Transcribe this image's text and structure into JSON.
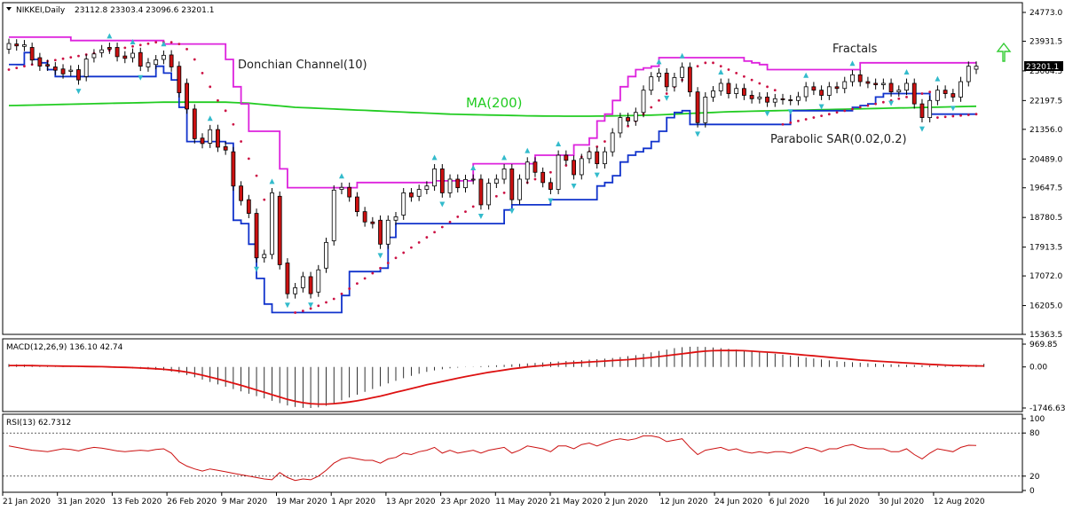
{
  "header": {
    "title": "NIKKEI,Daily",
    "ohlc": "23112.8 23303.4 23096.6 23201.1",
    "macd": "MACD(12,26,9) 136.10 42.74",
    "rsi": "RSI(13) 62.7312"
  },
  "annotations": {
    "donchian": "Donchian Channel(10)",
    "ma": "MA(200)",
    "fractals": "Fractals",
    "sar": "Parabolic SAR(0.02,0.2)"
  },
  "last_price": "23201.1",
  "colors": {
    "bull": "#ffffff",
    "bear": "#cc1111",
    "wick": "#000000",
    "donchian_upper": "#dd22dd",
    "donchian_lower": "#1133cc",
    "ma": "#22cc22",
    "sar": "#cc1144",
    "fractal": "#33bbcc",
    "macd_signal": "#dd1111",
    "macd_hist": "#000000",
    "rsi": "#cc1111",
    "arrow": "#33cc33"
  },
  "chart_data": [
    {
      "type": "candlestick",
      "title": "NIKKEI,Daily",
      "ylim": [
        15363.5,
        24773.0
      ],
      "y_ticks": [
        "24773.0",
        "23931.5",
        "23064.5",
        "22197.5",
        "21356.0",
        "20489.0",
        "19647.5",
        "18780.5",
        "17913.5",
        "17072.0",
        "16205.0",
        "15363.5"
      ],
      "x_labels": [
        "21 Jan 2020",
        "31 Jan 2020",
        "13 Feb 2020",
        "26 Feb 2020",
        "9 Mar 2020",
        "19 Mar 2020",
        "1 Apr 2020",
        "13 Apr 2020",
        "23 Apr 2020",
        "11 May 2020",
        "21 May 2020",
        "2 Jun 2020",
        "12 Jun 2020",
        "24 Jun 2020",
        "6 Jul 2020",
        "16 Jul 2020",
        "30 Jul 2020",
        "12 Aug 2020"
      ],
      "close": [
        23864,
        23795,
        23827,
        23380,
        23205,
        23204,
        23084,
        22977,
        23085,
        22800,
        23410,
        23560,
        23680,
        23700,
        23480,
        23430,
        23580,
        23200,
        23300,
        23388,
        23520,
        23180,
        22426,
        21950,
        21082,
        20940,
        21345,
        20834,
        20750,
        19699,
        19272,
        18900,
        17600,
        17700,
        19500,
        17400,
        16550,
        16727,
        17050,
        16553,
        17250,
        18050,
        19580,
        19660,
        19380,
        18950,
        18650,
        18600,
        18000,
        18700,
        18800,
        19500,
        19380,
        19600,
        19700,
        20200,
        19500,
        19900,
        19650,
        19890,
        19900,
        19150,
        19780,
        19900,
        20200,
        19300,
        19900,
        20400,
        20100,
        19800,
        19600,
        20600,
        20450,
        20030,
        20500,
        20700,
        20350,
        20700,
        21250,
        21700,
        21600,
        21850,
        22500,
        22890,
        23000,
        22600,
        22870,
        23170,
        22450,
        21550,
        22300,
        22480,
        22700,
        22400,
        22550,
        22350,
        22250,
        22300,
        22150,
        22250,
        22220,
        22200,
        22310,
        22600,
        22500,
        22350,
        22600,
        22550,
        22750,
        22950,
        22750,
        22700,
        22660,
        22700,
        22450,
        22500,
        22700,
        22100,
        21700,
        22200,
        22500,
        22400,
        22300,
        22750,
        23200,
        23201.1
      ],
      "open": [
        23700,
        23850,
        23780,
        23750,
        23450,
        23250,
        23180,
        23120,
        23050,
        23100,
        22900,
        23450,
        23600,
        23750,
        23750,
        23500,
        23450,
        23600,
        23180,
        23250,
        23400,
        23530,
        23200,
        22700,
        21950,
        21100,
        20950,
        21350,
        20850,
        20700,
        19700,
        19300,
        18900,
        17600,
        17700,
        19400,
        17450,
        16550,
        16727,
        17050,
        16600,
        17300,
        18100,
        19600,
        19660,
        19380,
        18950,
        18650,
        18700,
        18000,
        18700,
        18850,
        19500,
        19400,
        19600,
        19700,
        20200,
        19500,
        19900,
        19650,
        19890,
        19900,
        19150,
        19780,
        19900,
        20200,
        19300,
        19900,
        20400,
        20100,
        19800,
        19600,
        20600,
        20450,
        20030,
        20500,
        20700,
        20350,
        20700,
        21250,
        21700,
        21600,
        21850,
        22500,
        22890,
        23000,
        22600,
        22870,
        23170,
        22450,
        21550,
        22300,
        22480,
        22700,
        22400,
        22550,
        22350,
        22250,
        22300,
        22150,
        22250,
        22220,
        22200,
        22310,
        22600,
        22500,
        22350,
        22600,
        22550,
        22750,
        22950,
        22750,
        22700,
        22660,
        22700,
        22450,
        22500,
        22700,
        22100,
        21700,
        22200,
        22500,
        22400,
        22300,
        22750,
        23112.8
      ],
      "donchian_upper": [
        24050,
        24050,
        24050,
        24050,
        24050,
        24050,
        24050,
        24050,
        23950,
        23950,
        23950,
        23950,
        23950,
        23950,
        23950,
        23950,
        23950,
        23950,
        23950,
        23950,
        23850,
        23850,
        23850,
        23850,
        23850,
        23850,
        23850,
        23850,
        23400,
        22600,
        22100,
        21300,
        21300,
        21300,
        21300,
        20200,
        19650,
        19650,
        19650,
        19650,
        19650,
        19650,
        19650,
        19650,
        19650,
        19800,
        19800,
        19800,
        19800,
        19800,
        19800,
        19800,
        19800,
        19800,
        19800,
        19850,
        19850,
        19850,
        19850,
        19850,
        20350,
        20350,
        20350,
        20350,
        20350,
        20350,
        20350,
        20350,
        20600,
        20600,
        20600,
        20600,
        20600,
        20900,
        20900,
        21100,
        21600,
        21800,
        22200,
        22600,
        22900,
        23100,
        23150,
        23200,
        23450,
        23450,
        23450,
        23450,
        23450,
        23450,
        23450,
        23450,
        23450,
        23450,
        23450,
        23350,
        23300,
        23250,
        23100,
        23100,
        23100,
        23100,
        23100,
        23100,
        23100,
        23100,
        23100,
        23100,
        23100,
        23100,
        23300,
        23300,
        23300,
        23300,
        23300,
        23300,
        23300,
        23300,
        23300,
        23300,
        23300,
        23300,
        23300,
        23300,
        23300,
        23300
      ],
      "donchian_lower": [
        23250,
        23250,
        23600,
        23400,
        23300,
        23100,
        22900,
        22900,
        22900,
        22900,
        22900,
        22900,
        22900,
        22900,
        22900,
        22900,
        22900,
        22900,
        22900,
        23200,
        23000,
        22800,
        22000,
        21000,
        21000,
        21000,
        21000,
        21000,
        20950,
        18700,
        18600,
        18000,
        17000,
        16250,
        16000,
        16000,
        16000,
        16000,
        16000,
        16000,
        16000,
        16000,
        16000,
        16500,
        17200,
        17200,
        17200,
        17200,
        17300,
        18200,
        18600,
        18600,
        18600,
        18600,
        18600,
        18600,
        18600,
        18600,
        18600,
        18600,
        18600,
        18600,
        18600,
        18600,
        19000,
        19150,
        19150,
        19150,
        19150,
        19150,
        19300,
        19300,
        19300,
        19300,
        19300,
        19300,
        19700,
        19800,
        20000,
        20400,
        20600,
        20700,
        20800,
        21000,
        21300,
        21700,
        21850,
        21900,
        21500,
        21500,
        21500,
        21500,
        21500,
        21500,
        21500,
        21500,
        21500,
        21500,
        21500,
        21500,
        21500,
        21900,
        21900,
        21900,
        21900,
        21900,
        21900,
        21900,
        21900,
        22000,
        22050,
        22100,
        22300,
        22400,
        22400,
        22400,
        22400,
        22400,
        22400,
        21800,
        21800,
        21800,
        21800,
        21800,
        21800,
        21800
      ],
      "ma200": [
        22050,
        22055,
        22060,
        22065,
        22070,
        22075,
        22080,
        22085,
        22090,
        22095,
        22100,
        22105,
        22110,
        22115,
        22120,
        22125,
        22130,
        22135,
        22140,
        22145,
        22150,
        22150,
        22150,
        22150,
        22150,
        22150,
        22150,
        22150,
        22150,
        22140,
        22130,
        22120,
        22100,
        22080,
        22060,
        22040,
        22020,
        22000,
        21990,
        21980,
        21970,
        21960,
        21950,
        21940,
        21930,
        21920,
        21910,
        21900,
        21890,
        21880,
        21870,
        21860,
        21850,
        21840,
        21830,
        21820,
        21810,
        21800,
        21795,
        21790,
        21785,
        21780,
        21775,
        21770,
        21765,
        21760,
        21755,
        21750,
        21748,
        21746,
        21744,
        21742,
        21740,
        21740,
        21740,
        21740,
        21742,
        21745,
        21748,
        21752,
        21756,
        21760,
        21766,
        21772,
        21780,
        21790,
        21800,
        21810,
        21820,
        21830,
        21840,
        21850,
        21860,
        21870,
        21875,
        21880,
        21885,
        21890,
        21895,
        21900,
        21905,
        21910,
        21915,
        21920,
        21925,
        21930,
        21935,
        21940,
        21945,
        21950,
        21955,
        21960,
        21965,
        21970,
        21975,
        21980,
        21985,
        21990,
        21995,
        22000,
        22005,
        22010,
        22015,
        22020,
        22025,
        22030
      ],
      "sar": [
        23100,
        23150,
        23200,
        23250,
        23300,
        23350,
        23380,
        23420,
        23460,
        23500,
        23540,
        23580,
        23620,
        23660,
        23700,
        23740,
        23780,
        23820,
        23860,
        23900,
        23900,
        23900,
        23850,
        23700,
        23400,
        23000,
        22600,
        22200,
        21900,
        21500,
        21000,
        20500,
        20000,
        19300,
        18500,
        17500,
        16700,
        16000,
        16050,
        16120,
        16200,
        16300,
        16400,
        16550,
        16700,
        16850,
        17000,
        17150,
        17300,
        17450,
        17600,
        17750,
        17900,
        18050,
        18200,
        18350,
        18500,
        18650,
        18800,
        18950,
        19100,
        19200,
        19300,
        19400,
        19500,
        19600,
        19700,
        19800,
        19900,
        20000,
        20100,
        20200,
        20300,
        20400,
        20550,
        20700,
        20850,
        21000,
        21150,
        21300,
        21450,
        21600,
        21800,
        22000,
        22200,
        22400,
        22600,
        22800,
        23000,
        23200,
        23300,
        23300,
        23200,
        23100,
        23000,
        22900,
        22800,
        22700,
        22600,
        22500,
        21500,
        21550,
        21600,
        21650,
        21700,
        21750,
        21800,
        21850,
        21900,
        21950,
        22000,
        22050,
        22100,
        22150,
        22200,
        22250,
        22300,
        22350,
        22400,
        22450,
        21700,
        21720,
        21740,
        21760,
        21780,
        21800
      ]
    },
    {
      "type": "bar",
      "title": "MACD(12,26,9) 136.10 42.74",
      "ylim": [
        -1746.63,
        969.85
      ],
      "y_ticks": [
        "969.85",
        "0.00",
        "-1746.63"
      ],
      "macd": [
        120,
        110,
        100,
        90,
        80,
        70,
        60,
        50,
        40,
        30,
        20,
        10,
        0,
        -10,
        -20,
        -40,
        -60,
        -80,
        -100,
        -120,
        -150,
        -200,
        -260,
        -340,
        -440,
        -540,
        -640,
        -740,
        -840,
        -940,
        -1040,
        -1140,
        -1240,
        -1340,
        -1440,
        -1540,
        -1640,
        -1700,
        -1740,
        -1746,
        -1720,
        -1650,
        -1540,
        -1420,
        -1300,
        -1180,
        -1060,
        -940,
        -820,
        -700,
        -590,
        -480,
        -380,
        -290,
        -210,
        -150,
        -100,
        -60,
        -30,
        -10,
        10,
        30,
        50,
        70,
        90,
        110,
        130,
        150,
        170,
        190,
        210,
        230,
        250,
        270,
        290,
        310,
        330,
        350,
        380,
        420,
        460,
        500,
        560,
        620,
        680,
        740,
        800,
        840,
        860,
        860,
        850,
        830,
        800,
        770,
        740,
        710,
        680,
        640,
        600,
        560,
        520,
        480,
        440,
        400,
        360,
        320,
        280,
        250,
        220,
        200,
        180,
        160,
        140,
        120,
        110,
        100,
        90,
        80,
        70,
        60,
        50,
        40,
        40,
        50,
        60,
        90,
        136.1
      ],
      "signal": [
        60,
        60,
        60,
        55,
        50,
        45,
        40,
        35,
        30,
        25,
        20,
        15,
        10,
        0,
        -10,
        -20,
        -30,
        -45,
        -60,
        -80,
        -100,
        -130,
        -170,
        -220,
        -280,
        -350,
        -430,
        -510,
        -600,
        -690,
        -780,
        -880,
        -980,
        -1080,
        -1180,
        -1280,
        -1380,
        -1460,
        -1520,
        -1560,
        -1580,
        -1580,
        -1560,
        -1530,
        -1490,
        -1440,
        -1380,
        -1310,
        -1240,
        -1160,
        -1080,
        -1000,
        -920,
        -840,
        -760,
        -690,
        -620,
        -550,
        -480,
        -410,
        -350,
        -290,
        -230,
        -180,
        -130,
        -80,
        -40,
        0,
        30,
        60,
        90,
        120,
        150,
        170,
        190,
        210,
        230,
        250,
        270,
        290,
        310,
        340,
        370,
        400,
        440,
        480,
        520,
        560,
        600,
        640,
        670,
        690,
        700,
        700,
        700,
        690,
        670,
        650,
        630,
        610,
        590,
        560,
        530,
        500,
        470,
        440,
        410,
        380,
        350,
        320,
        290,
        270,
        250,
        230,
        210,
        190,
        170,
        150,
        130,
        110,
        95,
        80,
        65,
        55,
        48,
        45,
        42.74
      ]
    },
    {
      "type": "line",
      "title": "RSI(13) 62.7312",
      "ylim": [
        0,
        100
      ],
      "y_ticks": [
        "100",
        "80",
        "20",
        "0"
      ],
      "values": [
        62,
        60,
        58,
        56,
        55,
        54,
        56,
        58,
        57,
        55,
        58,
        60,
        59,
        57,
        55,
        54,
        55,
        56,
        55,
        57,
        58,
        52,
        40,
        34,
        30,
        27,
        30,
        28,
        26,
        24,
        22,
        20,
        18,
        16,
        15,
        25,
        18,
        14,
        16,
        15,
        20,
        28,
        38,
        44,
        46,
        44,
        42,
        42,
        38,
        44,
        46,
        52,
        50,
        54,
        56,
        60,
        52,
        56,
        52,
        54,
        56,
        52,
        56,
        58,
        60,
        52,
        56,
        62,
        60,
        58,
        54,
        62,
        62,
        58,
        64,
        66,
        62,
        66,
        70,
        72,
        70,
        72,
        76,
        76,
        74,
        68,
        70,
        72,
        60,
        50,
        56,
        58,
        60,
        56,
        58,
        54,
        52,
        54,
        52,
        54,
        54,
        52,
        56,
        60,
        58,
        54,
        58,
        58,
        62,
        64,
        60,
        58,
        58,
        58,
        54,
        54,
        58,
        50,
        44,
        52,
        58,
        56,
        54,
        60,
        63,
        62.7312
      ]
    }
  ]
}
